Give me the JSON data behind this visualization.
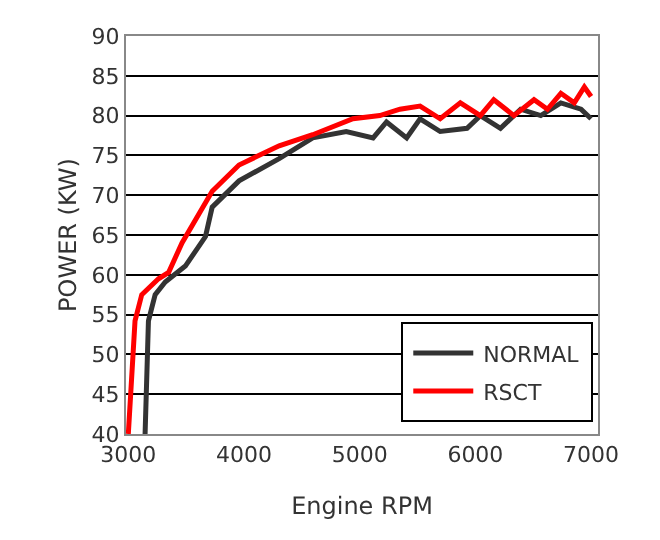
{
  "chart_data": {
    "type": "line",
    "xlabel": "Engine RPM",
    "ylabel": "POWER (KW)",
    "xlim": [
      2980,
      7060
    ],
    "ylim": [
      40,
      90
    ],
    "xticks": [
      3000,
      4000,
      5000,
      6000,
      7000
    ],
    "yticks": [
      40,
      45,
      50,
      55,
      60,
      65,
      70,
      75,
      80,
      85,
      90
    ],
    "grid": "y",
    "legend": "bottom right",
    "marker": "none",
    "line_style": "solid",
    "series": [
      {
        "name": "NORMAL",
        "color": "#333333",
        "x": [
          3145,
          3174,
          3232,
          3319,
          3493,
          3667,
          3725,
          3957,
          4304,
          4594,
          4884,
          5116,
          5232,
          5406,
          5522,
          5696,
          5928,
          6043,
          6217,
          6391,
          6565,
          6739,
          6913,
          7000
        ],
        "values": [
          40,
          54.2,
          57.5,
          59.1,
          61.1,
          64.8,
          68.5,
          71.8,
          74.6,
          77.2,
          78,
          77.2,
          79.2,
          77.2,
          79.6,
          78,
          78.4,
          80,
          78.4,
          80.8,
          80,
          81.6,
          80.8,
          79.6
        ]
      },
      {
        "name": "RSCT",
        "color": "#ff0000",
        "x": [
          3000,
          3058,
          3116,
          3261,
          3348,
          3464,
          3725,
          3957,
          4304,
          4594,
          4942,
          5174,
          5348,
          5522,
          5696,
          5870,
          6043,
          6159,
          6333,
          6507,
          6623,
          6739,
          6855,
          6942,
          7000
        ],
        "values": [
          40,
          54.2,
          57.5,
          59.5,
          60.3,
          64,
          70.5,
          73.8,
          76.2,
          77.6,
          79.6,
          80,
          80.8,
          81.2,
          79.6,
          81.6,
          80,
          82,
          80,
          82,
          80.8,
          82.8,
          81.6,
          83.6,
          82.4
        ]
      }
    ]
  }
}
